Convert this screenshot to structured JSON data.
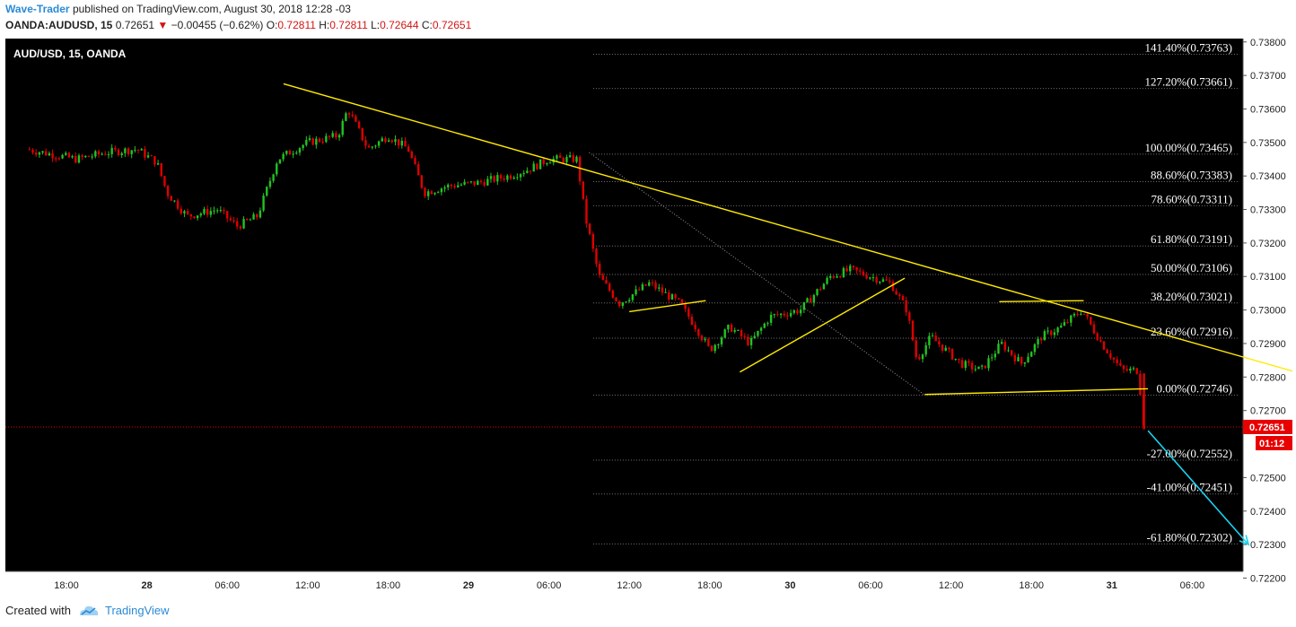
{
  "header": {
    "author": "Wave-Trader",
    "published": "published on TradingView.com, August 30, 2018 12:28 -03",
    "symbol": "OANDA:AUDUSD, 15",
    "last": "0.72651",
    "change": "−0.00455 (−0.62%)",
    "o_label": "O:",
    "o_value": "0.72811",
    "h_label": "H:",
    "h_value": "0.72811",
    "l_label": "L:",
    "l_value": "0.72644",
    "c_label": "C:",
    "c_value": "0.72651"
  },
  "footer": {
    "created_with": "Created with",
    "brand": "TradingView"
  },
  "colors": {
    "background": "#000000",
    "up": "#22c322",
    "down": "#e00000",
    "trendline": "#ffea00",
    "arrow": "#19d4f0",
    "fib_text": "#ffffff",
    "price_tag": "#e80000",
    "grid_dots": "#777777"
  },
  "chart_data": {
    "type": "candlestick",
    "title": "AUD/USD, 15, OANDA",
    "ylim": [
      0.7222,
      0.7381
    ],
    "x_ticks": [
      "18:00",
      "28",
      "06:00",
      "12:00",
      "18:00",
      "29",
      "06:00",
      "12:00",
      "18:00",
      "30",
      "06:00",
      "12:00",
      "18:00",
      "31",
      "06:00"
    ],
    "y_ticks": [
      "0.73800",
      "0.73700",
      "0.73600",
      "0.73500",
      "0.73400",
      "0.73300",
      "0.73200",
      "0.73100",
      "0.73000",
      "0.72900",
      "0.72800",
      "0.72700",
      "0.72500",
      "0.72400",
      "0.72300",
      "0.72200"
    ],
    "current_price": "0.72651",
    "countdown": "01:12",
    "fib_levels": [
      {
        "label": "141.40%(0.73763)",
        "price": 0.73763
      },
      {
        "label": "127.20%(0.73661)",
        "price": 0.73661
      },
      {
        "label": "100.00%(0.73465)",
        "price": 0.73465
      },
      {
        "label": "88.60%(0.73383)",
        "price": 0.73383
      },
      {
        "label": "78.60%(0.73311)",
        "price": 0.73311
      },
      {
        "label": "61.80%(0.73191)",
        "price": 0.73191
      },
      {
        "label": "50.00%(0.73106)",
        "price": 0.73106
      },
      {
        "label": "38.20%(0.73021)",
        "price": 0.73021
      },
      {
        "label": "23.60%(0.72916)",
        "price": 0.72916
      },
      {
        "label": "0.00%(0.72746)",
        "price": 0.72746
      },
      {
        "label": "-27.00%(0.72552)",
        "price": 0.72552
      },
      {
        "label": "-41.00%(0.72451)",
        "price": 0.72451
      },
      {
        "label": "-61.80%(0.72302)",
        "price": 0.72302
      }
    ],
    "price_path": [
      [
        -2,
        0.7348
      ],
      [
        0.5,
        0.7345
      ],
      [
        2,
        0.7347
      ],
      [
        3.5,
        0.7348
      ],
      [
        4.5,
        0.7344
      ],
      [
        5,
        0.7335
      ],
      [
        6,
        0.7328
      ],
      [
        7.5,
        0.733
      ],
      [
        8.5,
        0.7325
      ],
      [
        9.5,
        0.7328
      ],
      [
        10.5,
        0.7345
      ],
      [
        12,
        0.735
      ],
      [
        13.5,
        0.7352
      ],
      [
        14,
        0.736
      ],
      [
        15,
        0.7348
      ],
      [
        16,
        0.7352
      ],
      [
        17,
        0.7348
      ],
      [
        17.8,
        0.7335
      ],
      [
        19,
        0.7337
      ],
      [
        20.5,
        0.7338
      ],
      [
        22,
        0.734
      ],
      [
        23,
        0.7342
      ],
      [
        24,
        0.7345
      ],
      [
        25.4,
        0.7345
      ],
      [
        25.8,
        0.7328
      ],
      [
        26.5,
        0.731
      ],
      [
        27.5,
        0.7302
      ],
      [
        29,
        0.7308
      ],
      [
        30.5,
        0.7302
      ],
      [
        31.3,
        0.7295
      ],
      [
        32,
        0.7288
      ],
      [
        33,
        0.7295
      ],
      [
        34,
        0.729
      ],
      [
        35,
        0.7298
      ],
      [
        36.5,
        0.73
      ],
      [
        38,
        0.731
      ],
      [
        39,
        0.7312
      ],
      [
        40,
        0.731
      ],
      [
        41,
        0.7308
      ],
      [
        41.8,
        0.73
      ],
      [
        42.3,
        0.7285
      ],
      [
        43,
        0.7292
      ],
      [
        44.5,
        0.7284
      ],
      [
        45.5,
        0.7282
      ],
      [
        46.5,
        0.729
      ],
      [
        47.5,
        0.7284
      ],
      [
        48.5,
        0.7292
      ],
      [
        49.5,
        0.7295
      ],
      [
        50.5,
        0.73
      ],
      [
        51.5,
        0.729
      ],
      [
        52.5,
        0.7282
      ],
      [
        53.3,
        0.7282
      ],
      [
        53.6,
        0.7265
      ]
    ],
    "trendlines": [
      {
        "name": "descending-resistance",
        "points": [
          [
            10.8,
            0.73675
          ],
          [
            67.0,
            0.72715
          ]
        ]
      },
      {
        "name": "support-1",
        "points": [
          [
            28.0,
            0.72995
          ],
          [
            31.8,
            0.73028
          ]
        ]
      },
      {
        "name": "rising-line",
        "points": [
          [
            33.5,
            0.72815
          ],
          [
            41.7,
            0.73095
          ]
        ]
      },
      {
        "name": "lower-support",
        "points": [
          [
            42.7,
            0.72748
          ],
          [
            53.8,
            0.72765
          ]
        ]
      },
      {
        "name": "upper-resistance",
        "points": [
          [
            46.4,
            0.73025
          ],
          [
            50.6,
            0.73028
          ]
        ]
      }
    ],
    "fib_anchor": [
      [
        26.0,
        0.7347
      ],
      [
        42.7,
        0.72746
      ]
    ],
    "projection_arrow": [
      [
        53.8,
        0.7264
      ],
      [
        58.8,
        0.723
      ]
    ]
  }
}
